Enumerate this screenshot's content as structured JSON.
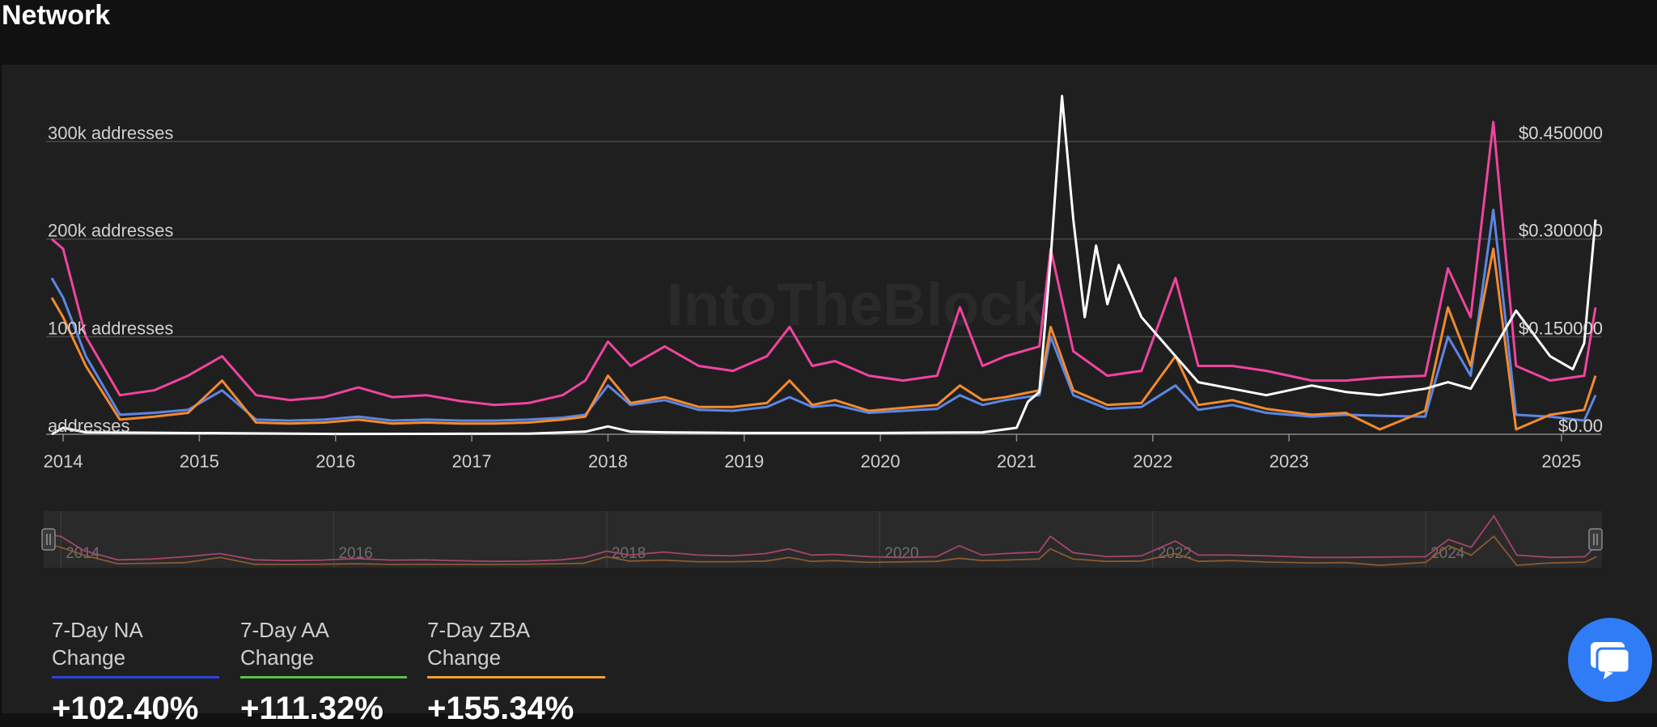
{
  "page": {
    "title": "Network"
  },
  "chart_data": {
    "type": "line",
    "watermark": "IntoTheBlock",
    "x_axis": {
      "ticks": [
        "2014",
        "2015",
        "2016",
        "2017",
        "2018",
        "2019",
        "2020",
        "2021",
        "2022",
        "2023",
        "2025"
      ]
    },
    "y_left": {
      "ticks": [
        {
          "value": 0,
          "label": "addresses"
        },
        {
          "value": 100000,
          "label": "100k addresses"
        },
        {
          "value": 200000,
          "label": "200k addresses"
        },
        {
          "value": 300000,
          "label": "300k addresses"
        }
      ],
      "range": [
        0,
        300000
      ]
    },
    "y_right": {
      "ticks": [
        {
          "value": 0,
          "label": "$0.00"
        },
        {
          "value": 0.15,
          "label": "$0.150000"
        },
        {
          "value": 0.3,
          "label": "$0.300000"
        },
        {
          "value": 0.45,
          "label": "$0.450000"
        }
      ],
      "range": [
        0,
        0.45
      ]
    },
    "series": [
      {
        "color": "#f0449f",
        "axis": "left",
        "points": [
          [
            "2013-12",
            200000
          ],
          [
            "2014-01",
            190000
          ],
          [
            "2014-03",
            100000
          ],
          [
            "2014-06",
            40000
          ],
          [
            "2014-09",
            45000
          ],
          [
            "2014-12",
            60000
          ],
          [
            "2015-03",
            80000
          ],
          [
            "2015-06",
            40000
          ],
          [
            "2015-09",
            35000
          ],
          [
            "2015-12",
            38000
          ],
          [
            "2016-03",
            48000
          ],
          [
            "2016-06",
            38000
          ],
          [
            "2016-09",
            40000
          ],
          [
            "2016-12",
            34000
          ],
          [
            "2017-03",
            30000
          ],
          [
            "2017-06",
            32000
          ],
          [
            "2017-09",
            40000
          ],
          [
            "2017-11",
            55000
          ],
          [
            "2018-01",
            95000
          ],
          [
            "2018-03",
            70000
          ],
          [
            "2018-06",
            90000
          ],
          [
            "2018-09",
            70000
          ],
          [
            "2018-12",
            65000
          ],
          [
            "2019-03",
            80000
          ],
          [
            "2019-05",
            110000
          ],
          [
            "2019-07",
            70000
          ],
          [
            "2019-09",
            75000
          ],
          [
            "2019-12",
            60000
          ],
          [
            "2020-03",
            55000
          ],
          [
            "2020-06",
            60000
          ],
          [
            "2020-08",
            130000
          ],
          [
            "2020-10",
            70000
          ],
          [
            "2020-12",
            80000
          ],
          [
            "2021-03",
            90000
          ],
          [
            "2021-04",
            190000
          ],
          [
            "2021-06",
            85000
          ],
          [
            "2021-09",
            60000
          ],
          [
            "2021-12",
            65000
          ],
          [
            "2022-03",
            160000
          ],
          [
            "2022-05",
            70000
          ],
          [
            "2022-08",
            70000
          ],
          [
            "2022-11",
            65000
          ],
          [
            "2023-03",
            55000
          ],
          [
            "2023-06",
            55000
          ],
          [
            "2023-09",
            58000
          ],
          [
            "2024-01",
            60000
          ],
          [
            "2024-03",
            170000
          ],
          [
            "2024-05",
            120000
          ],
          [
            "2024-07",
            320000
          ],
          [
            "2024-09",
            70000
          ],
          [
            "2024-12",
            55000
          ],
          [
            "2025-03",
            60000
          ],
          [
            "2025-04",
            130000
          ]
        ]
      },
      {
        "color": "#5b86e5",
        "axis": "left",
        "points": [
          [
            "2013-12",
            160000
          ],
          [
            "2014-01",
            140000
          ],
          [
            "2014-03",
            80000
          ],
          [
            "2014-06",
            20000
          ],
          [
            "2014-09",
            22000
          ],
          [
            "2014-12",
            25000
          ],
          [
            "2015-03",
            45000
          ],
          [
            "2015-06",
            15000
          ],
          [
            "2015-09",
            14000
          ],
          [
            "2015-12",
            15000
          ],
          [
            "2016-03",
            18000
          ],
          [
            "2016-06",
            14000
          ],
          [
            "2016-09",
            15000
          ],
          [
            "2016-12",
            14000
          ],
          [
            "2017-03",
            14000
          ],
          [
            "2017-06",
            15000
          ],
          [
            "2017-09",
            17000
          ],
          [
            "2017-11",
            20000
          ],
          [
            "2018-01",
            50000
          ],
          [
            "2018-03",
            30000
          ],
          [
            "2018-06",
            35000
          ],
          [
            "2018-09",
            25000
          ],
          [
            "2018-12",
            24000
          ],
          [
            "2019-03",
            28000
          ],
          [
            "2019-05",
            38000
          ],
          [
            "2019-07",
            28000
          ],
          [
            "2019-09",
            30000
          ],
          [
            "2019-12",
            22000
          ],
          [
            "2020-03",
            24000
          ],
          [
            "2020-06",
            26000
          ],
          [
            "2020-08",
            40000
          ],
          [
            "2020-10",
            30000
          ],
          [
            "2020-12",
            35000
          ],
          [
            "2021-03",
            40000
          ],
          [
            "2021-04",
            100000
          ],
          [
            "2021-06",
            40000
          ],
          [
            "2021-09",
            26000
          ],
          [
            "2021-12",
            28000
          ],
          [
            "2022-03",
            50000
          ],
          [
            "2022-05",
            25000
          ],
          [
            "2022-08",
            30000
          ],
          [
            "2022-11",
            22000
          ],
          [
            "2023-03",
            18000
          ],
          [
            "2023-06",
            20000
          ],
          [
            "2023-09",
            19000
          ],
          [
            "2024-01",
            18000
          ],
          [
            "2024-03",
            100000
          ],
          [
            "2024-05",
            60000
          ],
          [
            "2024-07",
            230000
          ],
          [
            "2024-09",
            20000
          ],
          [
            "2024-12",
            18000
          ],
          [
            "2025-03",
            14000
          ],
          [
            "2025-04",
            40000
          ]
        ]
      },
      {
        "color": "#f28a30",
        "axis": "left",
        "points": [
          [
            "2013-12",
            140000
          ],
          [
            "2014-01",
            120000
          ],
          [
            "2014-03",
            70000
          ],
          [
            "2014-06",
            15000
          ],
          [
            "2014-09",
            18000
          ],
          [
            "2014-12",
            22000
          ],
          [
            "2015-03",
            55000
          ],
          [
            "2015-06",
            12000
          ],
          [
            "2015-09",
            11000
          ],
          [
            "2015-12",
            12000
          ],
          [
            "2016-03",
            15000
          ],
          [
            "2016-06",
            11000
          ],
          [
            "2016-09",
            12000
          ],
          [
            "2016-12",
            11000
          ],
          [
            "2017-03",
            11000
          ],
          [
            "2017-06",
            12000
          ],
          [
            "2017-09",
            15000
          ],
          [
            "2017-11",
            18000
          ],
          [
            "2018-01",
            60000
          ],
          [
            "2018-03",
            32000
          ],
          [
            "2018-06",
            38000
          ],
          [
            "2018-09",
            28000
          ],
          [
            "2018-12",
            28000
          ],
          [
            "2019-03",
            32000
          ],
          [
            "2019-05",
            55000
          ],
          [
            "2019-07",
            30000
          ],
          [
            "2019-09",
            35000
          ],
          [
            "2019-12",
            24000
          ],
          [
            "2020-03",
            27000
          ],
          [
            "2020-06",
            30000
          ],
          [
            "2020-08",
            50000
          ],
          [
            "2020-10",
            35000
          ],
          [
            "2020-12",
            38000
          ],
          [
            "2021-03",
            45000
          ],
          [
            "2021-04",
            110000
          ],
          [
            "2021-06",
            45000
          ],
          [
            "2021-09",
            30000
          ],
          [
            "2021-12",
            32000
          ],
          [
            "2022-03",
            80000
          ],
          [
            "2022-05",
            30000
          ],
          [
            "2022-08",
            35000
          ],
          [
            "2022-11",
            26000
          ],
          [
            "2023-03",
            20000
          ],
          [
            "2023-06",
            22000
          ],
          [
            "2023-09",
            5000
          ],
          [
            "2024-01",
            24000
          ],
          [
            "2024-03",
            130000
          ],
          [
            "2024-05",
            70000
          ],
          [
            "2024-07",
            190000
          ],
          [
            "2024-09",
            5000
          ],
          [
            "2024-12",
            20000
          ],
          [
            "2025-03",
            25000
          ],
          [
            "2025-04",
            60000
          ]
        ]
      },
      {
        "color": "#ffffff",
        "axis": "right",
        "points": [
          [
            "2013-12",
            0.0
          ],
          [
            "2014-01",
            0.01
          ],
          [
            "2014-03",
            0.003
          ],
          [
            "2016-01",
            0.0005
          ],
          [
            "2017-06",
            0.001
          ],
          [
            "2017-11",
            0.004
          ],
          [
            "2018-01",
            0.012
          ],
          [
            "2018-03",
            0.004
          ],
          [
            "2018-06",
            0.003
          ],
          [
            "2019-01",
            0.002
          ],
          [
            "2020-01",
            0.002
          ],
          [
            "2020-10",
            0.003
          ],
          [
            "2021-01",
            0.01
          ],
          [
            "2021-02",
            0.05
          ],
          [
            "2021-03",
            0.065
          ],
          [
            "2021-04",
            0.27
          ],
          [
            "2021-05",
            0.52
          ],
          [
            "2021-06",
            0.33
          ],
          [
            "2021-07",
            0.18
          ],
          [
            "2021-08",
            0.29
          ],
          [
            "2021-09",
            0.2
          ],
          [
            "2021-10",
            0.26
          ],
          [
            "2021-12",
            0.18
          ],
          [
            "2022-03",
            0.12
          ],
          [
            "2022-05",
            0.08
          ],
          [
            "2022-08",
            0.07
          ],
          [
            "2022-11",
            0.06
          ],
          [
            "2023-03",
            0.075
          ],
          [
            "2023-06",
            0.065
          ],
          [
            "2023-09",
            0.06
          ],
          [
            "2024-01",
            0.07
          ],
          [
            "2024-03",
            0.08
          ],
          [
            "2024-05",
            0.07
          ],
          [
            "2024-07",
            0.13
          ],
          [
            "2024-09",
            0.19
          ],
          [
            "2024-12",
            0.12
          ],
          [
            "2025-02",
            0.1
          ],
          [
            "2025-03",
            0.14
          ],
          [
            "2025-04",
            0.33
          ]
        ]
      }
    ],
    "navigator": {
      "labels": [
        "2014",
        "2016",
        "2018",
        "2020",
        "2022",
        "2024"
      ]
    }
  },
  "stats": [
    {
      "label": "7-Day NA Change",
      "value": "+102.40%",
      "color": "#2b44d8"
    },
    {
      "label": "7-Day AA Change",
      "value": "+111.32%",
      "color": "#5bbf4a"
    },
    {
      "label": "7-Day ZBA Change",
      "value": "+155.34%",
      "color": "#f0a030"
    }
  ],
  "chat": {
    "icon": "chat-bubble-icon"
  }
}
